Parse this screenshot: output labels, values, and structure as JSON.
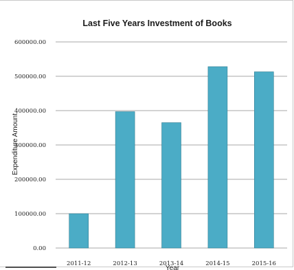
{
  "chart_data": {
    "type": "bar",
    "title": "Last Five Years Investment of Books",
    "xlabel": "Year",
    "ylabel": "Expenditure Amount",
    "categories": [
      "2011-12",
      "2012-13",
      "2013-14",
      "2014-15",
      "2015-16"
    ],
    "values": [
      100000,
      397000,
      365000,
      528000,
      513000
    ],
    "ylim": [
      0,
      600000
    ],
    "yticks": [
      "0.00",
      "100000.00",
      "200000.00",
      "300000.00",
      "400000.00",
      "500000.00",
      "600000.00"
    ],
    "grid": true,
    "legend": "none",
    "bar_color": "#4bacc6"
  }
}
